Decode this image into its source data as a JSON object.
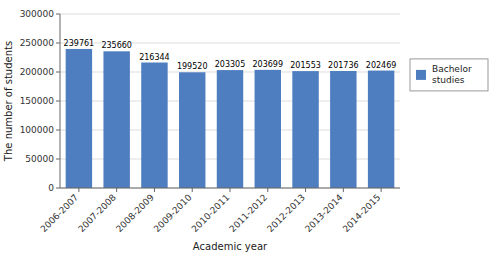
{
  "chart_data": {
    "type": "bar",
    "categories": [
      "2006-2007",
      "2007-2008",
      "2008-2009",
      "2009-2010",
      "2010-2011",
      "2011-2012",
      "2012-2013",
      "2013-2014",
      "2014-2015"
    ],
    "series": [
      {
        "name": "Bachelor\nstudies",
        "color": "#4E7EC0",
        "values": [
          239761,
          235660,
          216344,
          199520,
          203305,
          203699,
          201553,
          201736,
          202469
        ]
      }
    ],
    "xlabel": "Academic year",
    "ylabel": "The number of students",
    "ylim": [
      0,
      300000
    ],
    "yticks": [
      0,
      50000,
      100000,
      150000,
      200000,
      250000,
      300000
    ],
    "grid": true,
    "legend": "right",
    "data_labels": true
  }
}
